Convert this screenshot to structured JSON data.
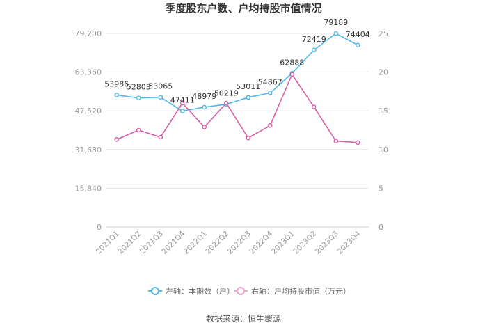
{
  "chart_data": {
    "type": "line",
    "title": "季度股东户数、户均持股市值情况",
    "categories": [
      "2021Q1",
      "2021Q2",
      "2021Q3",
      "2021Q4",
      "2022Q1",
      "2022Q2",
      "2022Q3",
      "2022Q4",
      "2023Q1",
      "2023Q2",
      "2023Q3",
      "2023Q4"
    ],
    "y_left": {
      "ticks": [
        "0",
        "15,840",
        "31,680",
        "47,520",
        "63,360",
        "79,200"
      ],
      "range": [
        0,
        79200
      ]
    },
    "y_right": {
      "ticks": [
        "0",
        "5",
        "10",
        "15",
        "20",
        "25"
      ],
      "range": [
        0,
        25
      ]
    },
    "series": [
      {
        "name": "左轴：本期数（户）",
        "axis": "left",
        "color": "#4fb8e6",
        "values": [
          53986,
          52803,
          53065,
          47411,
          48979,
          50219,
          53011,
          54867,
          62888,
          72419,
          79189,
          74404
        ],
        "labels": [
          "53986",
          "52803",
          "53065",
          "47411",
          "48979",
          "50219",
          "53011",
          "54867",
          "62888",
          "72419",
          "79189",
          "74404"
        ]
      },
      {
        "name": "右轴：户均持股市值（万元）",
        "axis": "right",
        "color": "#d660a8",
        "values": [
          11.3,
          12.5,
          11.6,
          16.0,
          12.9,
          16.0,
          11.5,
          13.1,
          19.7,
          15.5,
          11.1,
          10.9
        ]
      }
    ],
    "grid": true,
    "legend_position": "bottom"
  },
  "source": "数据来源：恒生聚源"
}
